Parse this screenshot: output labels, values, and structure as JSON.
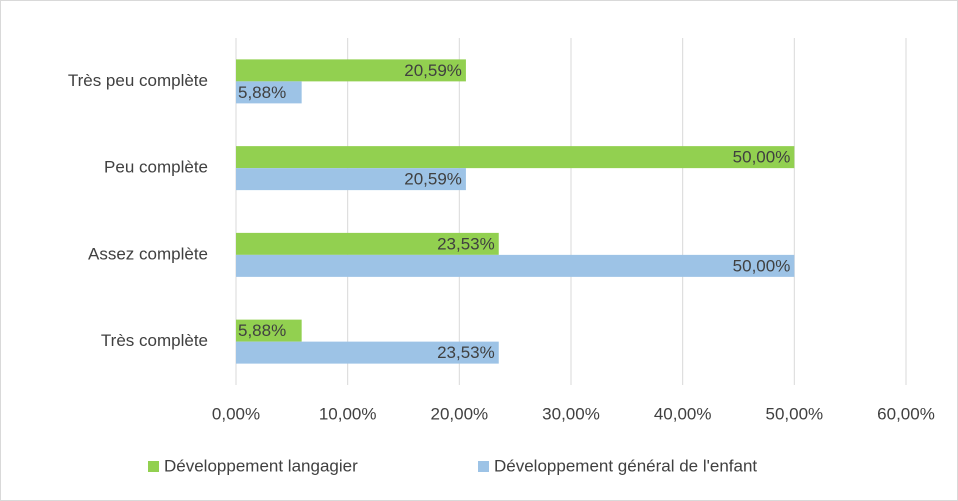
{
  "chart_data": {
    "type": "hbar",
    "categories": [
      "Très peu complète",
      "Peu complète",
      "Assez complète",
      "Très complète"
    ],
    "series": [
      {
        "name": "Développement langagier",
        "color": "#92d050",
        "values": [
          20.59,
          50,
          23.53,
          5.88
        ],
        "value_labels": [
          "20,59%",
          "50,00%",
          "23,53%",
          "5,88%"
        ]
      },
      {
        "name": "Développement général de l'enfant",
        "color": "#9dc3e6",
        "values": [
          5.88,
          20.59,
          50,
          23.53
        ],
        "value_labels": [
          "5,88%",
          "20,59%",
          "50,00%",
          "23,53%"
        ]
      }
    ],
    "xlim": [
      0,
      60
    ],
    "xticks": [
      {
        "value": 0,
        "label": "0,00%"
      },
      {
        "value": 10,
        "label": "10,00%"
      },
      {
        "value": 20,
        "label": "20,00%"
      },
      {
        "value": 30,
        "label": "30,00%"
      },
      {
        "value": 40,
        "label": "40,00%"
      },
      {
        "value": 50,
        "label": "50,00%"
      },
      {
        "value": 60,
        "label": "60,00%"
      }
    ],
    "grid": true,
    "legend": "bottom"
  }
}
